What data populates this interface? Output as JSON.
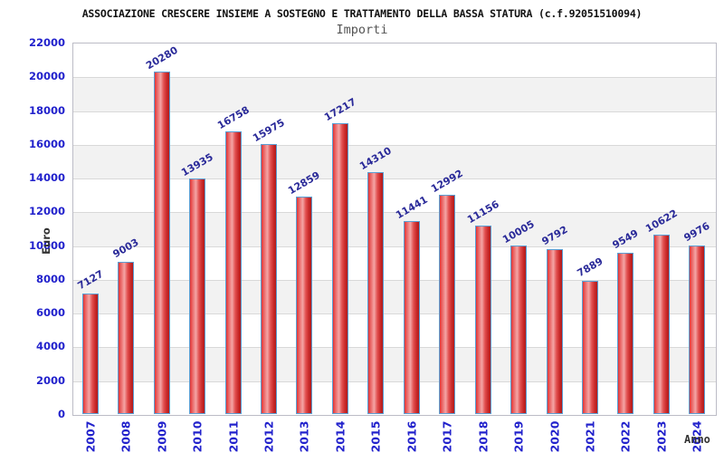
{
  "header": {
    "title": "ASSOCIAZIONE CRESCERE INSIEME A SOSTEGNO E TRATTAMENTO DELLA BASSA STATURA (c.f.92051510094)",
    "subtitle": "Importi"
  },
  "chart_data": {
    "type": "bar",
    "title": "ASSOCIAZIONE CRESCERE INSIEME A SOSTEGNO E TRATTAMENTO DELLA BASSA STATURA (c.f.92051510094)",
    "subtitle": "Importi",
    "xlabel": "Anno",
    "ylabel": "Euro",
    "categories": [
      "2007",
      "2008",
      "2009",
      "2010",
      "2011",
      "2012",
      "2013",
      "2014",
      "2015",
      "2016",
      "2017",
      "2018",
      "2019",
      "2020",
      "2021",
      "2022",
      "2023",
      "2024"
    ],
    "values": [
      7127,
      9003,
      20280,
      13935,
      16758,
      15975,
      12859,
      17217,
      14310,
      11441,
      12992,
      11156,
      10005,
      9792,
      7889,
      9549,
      10622,
      9976
    ],
    "ylim": [
      0,
      22000
    ],
    "ytick_step": 2000,
    "ytick_labels": [
      "0",
      "2000",
      "4000",
      "6000",
      "8000",
      "10000",
      "12000",
      "14000",
      "16000",
      "18000",
      "20000",
      "22000"
    ],
    "legend": "none",
    "grid": true,
    "colors": {
      "axis_tick_label": "#2222cc",
      "value_label": "#2a2a99",
      "axis_title": "#333333",
      "title": "#111111",
      "subtitle": "#555555",
      "band_light": "#ffffff",
      "band_dark": "#f2f2f2",
      "gridline": "#d9d9d9",
      "plot_border": "#bcbcc6",
      "bar_border": "#5a9fd4",
      "bar_gradient": [
        "#e43434",
        "#ea6464",
        "#f4a6a6",
        "#e25050",
        "#c62626",
        "#b01d1d"
      ]
    }
  }
}
